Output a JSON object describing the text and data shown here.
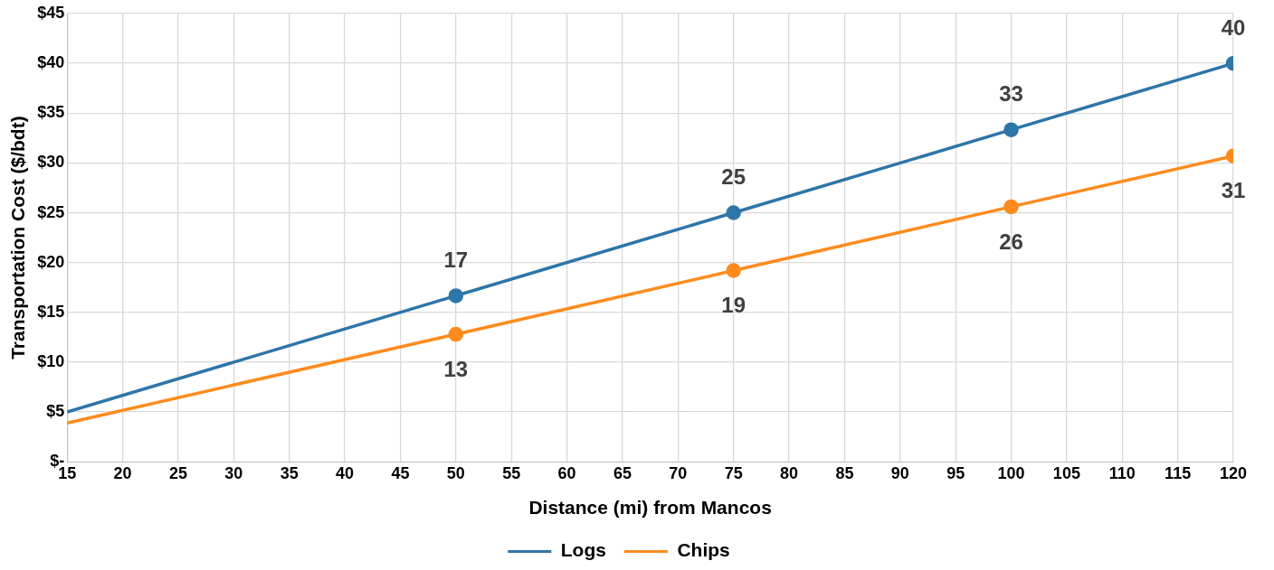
{
  "chart_data": {
    "type": "line",
    "xlabel": "Distance (mi) from Mancos",
    "ylabel": "Transportation Cost ($/bdt)",
    "xlim": [
      15,
      120
    ],
    "xticks": [
      15,
      20,
      25,
      30,
      35,
      40,
      45,
      50,
      55,
      60,
      65,
      70,
      75,
      80,
      85,
      90,
      95,
      100,
      105,
      110,
      115,
      120
    ],
    "ylim": [
      0,
      45
    ],
    "yticks": [
      {
        "value": 0,
        "label": "$-"
      },
      {
        "value": 5,
        "label": "$5"
      },
      {
        "value": 10,
        "label": "$10"
      },
      {
        "value": 15,
        "label": "$15"
      },
      {
        "value": 20,
        "label": "$20"
      },
      {
        "value": 25,
        "label": "$25"
      },
      {
        "value": 30,
        "label": "$30"
      },
      {
        "value": 35,
        "label": "$35"
      },
      {
        "value": 40,
        "label": "$40"
      },
      {
        "value": 45,
        "label": "$45"
      }
    ],
    "x": [
      15,
      50,
      75,
      100,
      120
    ],
    "series": [
      {
        "name": "Logs",
        "color": "#2e75a8",
        "values": [
          5,
          16.67,
          25,
          33.33,
          40
        ],
        "value_labels": [
          null,
          "17",
          "25",
          "33",
          "40"
        ]
      },
      {
        "name": "Chips",
        "color": "#fd8b1e",
        "values": [
          3.9,
          12.8,
          19.2,
          25.6,
          30.7
        ],
        "value_labels": [
          null,
          "13",
          "19",
          "26",
          "31"
        ]
      }
    ],
    "grid": true,
    "legend": "bottom",
    "marker": "circle",
    "line_style": "solid"
  }
}
